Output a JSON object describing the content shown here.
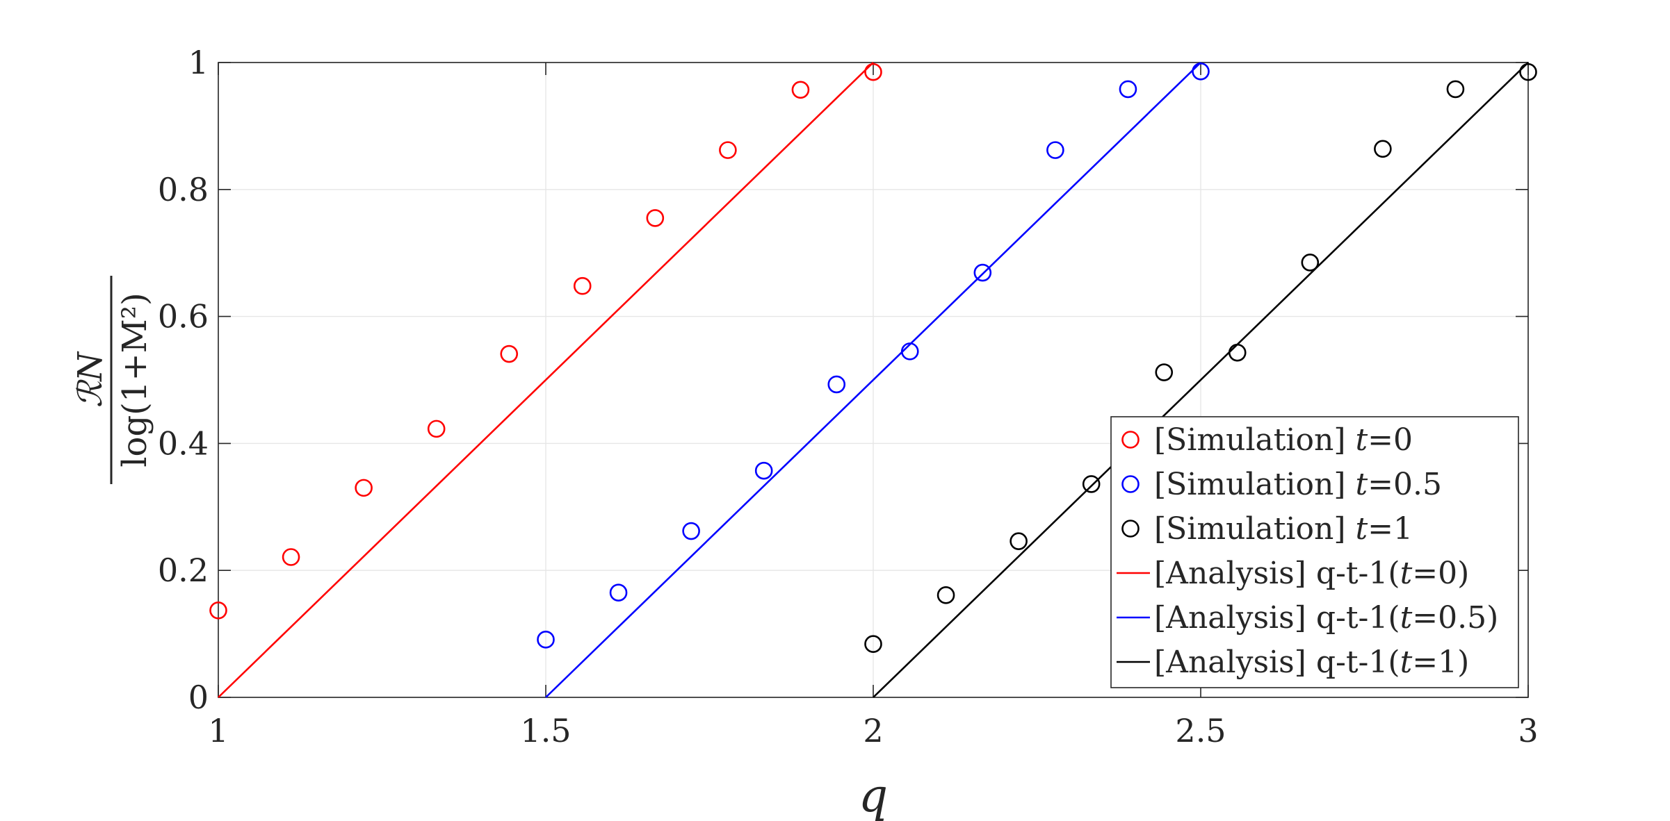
{
  "chart_data": {
    "type": "scatter",
    "title": "",
    "xlabel": "q",
    "ylabel_num": "ℛN",
    "ylabel_den": "log(1+M²)",
    "xlim": [
      1,
      3
    ],
    "ylim": [
      0,
      1
    ],
    "xticks": [
      1,
      1.5,
      2,
      2.5,
      3
    ],
    "xtick_labels": [
      "1",
      "1.5",
      "2",
      "2.5",
      "3"
    ],
    "yticks": [
      0,
      0.2,
      0.4,
      0.6,
      0.8,
      1
    ],
    "ytick_labels": [
      "0",
      "0.2",
      "0.4",
      "0.6",
      "0.8",
      "1"
    ],
    "grid": true,
    "legend_position": "bottom-right",
    "series": [
      {
        "name": "[Simulation] t=0",
        "kind": "markers",
        "color": "#ff0000",
        "x": [
          1.0,
          1.111,
          1.222,
          1.333,
          1.444,
          1.556,
          1.667,
          1.778,
          1.889,
          2.0
        ],
        "y": [
          0.137,
          0.221,
          0.33,
          0.423,
          0.541,
          0.648,
          0.755,
          0.862,
          0.957,
          0.985
        ]
      },
      {
        "name": "[Simulation] t=0.5",
        "kind": "markers",
        "color": "#0000ff",
        "x": [
          1.5,
          1.611,
          1.722,
          1.833,
          1.944,
          2.056,
          2.167,
          2.278,
          2.389,
          2.5
        ],
        "y": [
          0.091,
          0.165,
          0.262,
          0.357,
          0.493,
          0.545,
          0.669,
          0.862,
          0.958,
          0.986
        ]
      },
      {
        "name": "[Simulation] t=1",
        "kind": "markers",
        "color": "#000000",
        "x": [
          2.0,
          2.111,
          2.222,
          2.333,
          2.444,
          2.556,
          2.667,
          2.778,
          2.889,
          3.0
        ],
        "y": [
          0.084,
          0.161,
          0.246,
          0.336,
          0.512,
          0.543,
          0.685,
          0.864,
          0.958,
          0.985
        ]
      },
      {
        "name": "[Analysis] q-t-1(t=0)",
        "kind": "line",
        "color": "#ff0000",
        "x": [
          1.0,
          2.0
        ],
        "y": [
          0.0,
          1.0
        ]
      },
      {
        "name": "[Analysis] q-t-1(t=0.5)",
        "kind": "line",
        "color": "#0000ff",
        "x": [
          1.5,
          2.5
        ],
        "y": [
          0.0,
          1.0
        ]
      },
      {
        "name": "[Analysis] q-t-1(t=1)",
        "kind": "line",
        "color": "#000000",
        "x": [
          2.0,
          3.0
        ],
        "y": [
          0.0,
          1.0
        ]
      }
    ],
    "legend": [
      {
        "prefix": "[Simulation] ",
        "var": "t",
        "suffix": "=0",
        "kind": "markers",
        "color": "#ff0000"
      },
      {
        "prefix": "[Simulation] ",
        "var": "t",
        "suffix": "=0.5",
        "kind": "markers",
        "color": "#0000ff"
      },
      {
        "prefix": "[Simulation] ",
        "var": "t",
        "suffix": "=1",
        "kind": "markers",
        "color": "#000000"
      },
      {
        "prefix": "[Analysis] q-t-1(",
        "var": "t",
        "suffix": "=0)",
        "kind": "line",
        "color": "#ff0000"
      },
      {
        "prefix": "[Analysis] q-t-1(",
        "var": "t",
        "suffix": "=0.5)",
        "kind": "line",
        "color": "#0000ff"
      },
      {
        "prefix": "[Analysis] q-t-1(",
        "var": "t",
        "suffix": "=1)",
        "kind": "line",
        "color": "#000000"
      }
    ]
  }
}
